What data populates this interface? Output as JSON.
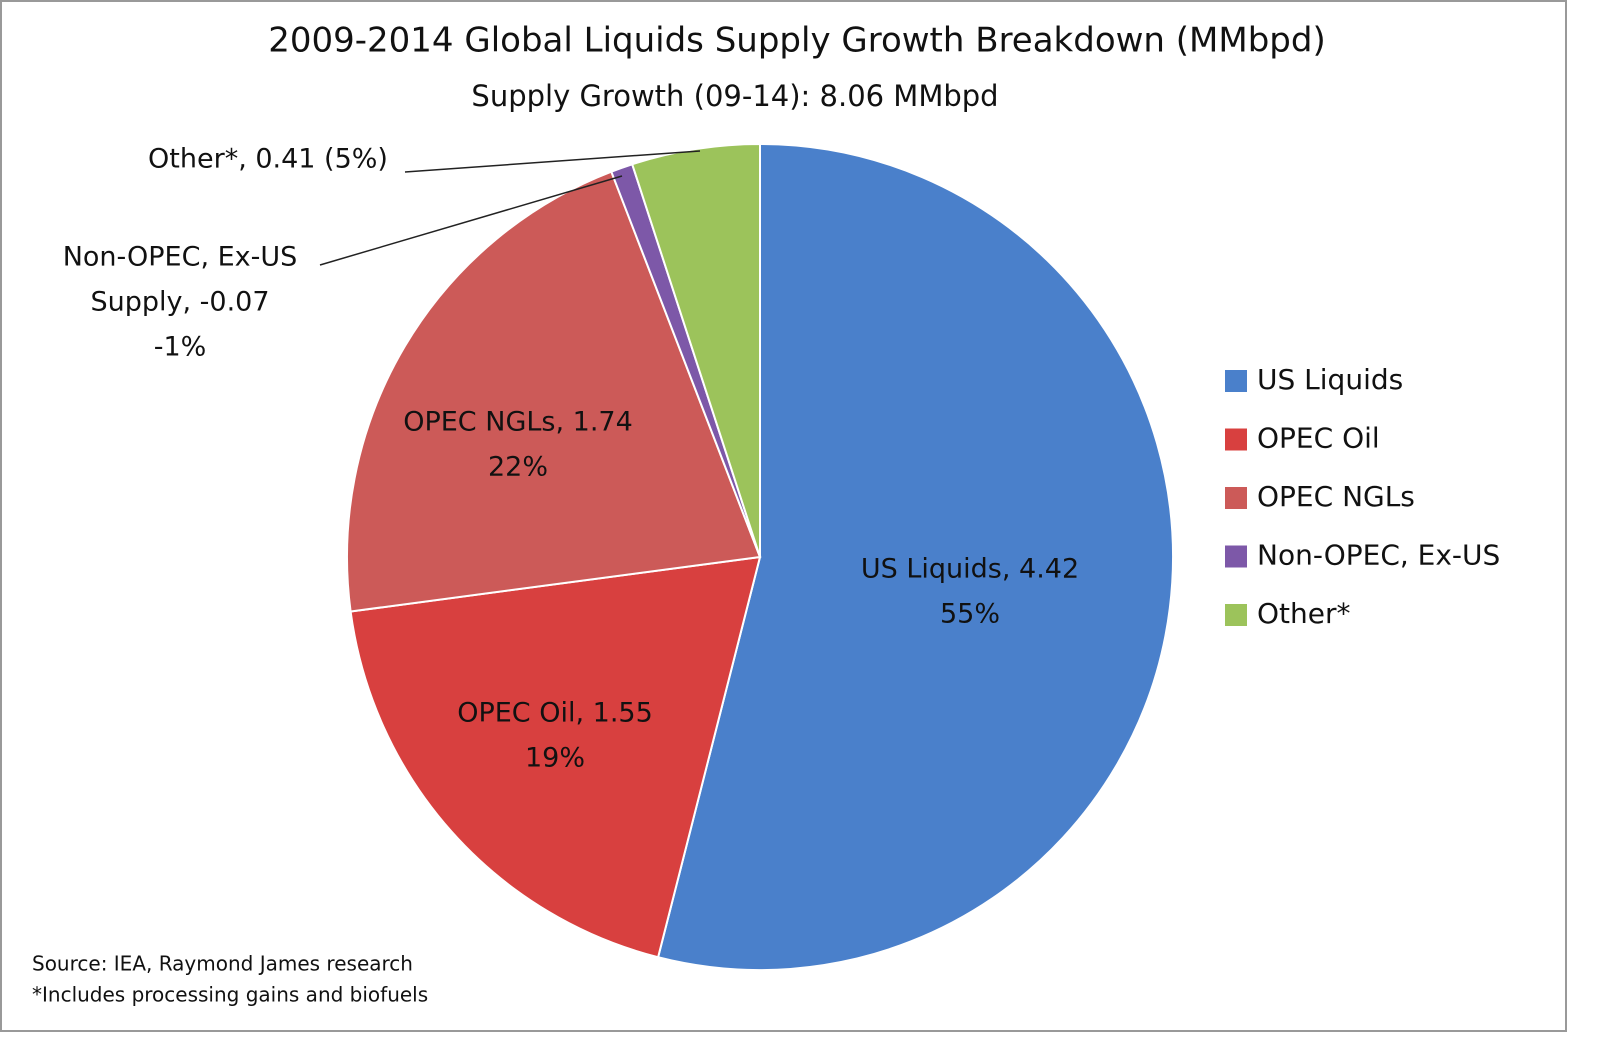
{
  "chart_data": {
    "type": "pie",
    "title": "2009-2014 Global Liquids Supply Growth Breakdown (MMbpd)",
    "subtitle": "Supply Growth (09-14): 8.06 MMbpd",
    "categories": [
      "US Liquids",
      "OPEC Oil",
      "OPEC NGLs",
      "Non-OPEC, Ex-US",
      "Other*"
    ],
    "values": [
      4.42,
      1.55,
      1.74,
      -0.07,
      0.41
    ],
    "value_labels": [
      [
        "US Liquids, 4.42",
        "55%"
      ],
      [
        "OPEC Oil, 1.55",
        "19%"
      ],
      [
        "OPEC NGLs, 1.74",
        "22%"
      ],
      [
        "Non-OPEC, Ex-US",
        "Supply, -0.07",
        "-1%"
      ],
      [
        "Other*, 0.41 (5%)"
      ]
    ],
    "colors": [
      "#4a80cb",
      "#d8403f",
      "#cc5a58",
      "#7d58a8",
      "#9cc35b"
    ],
    "legend": "right",
    "notes": [
      "Source: IEA, Raymond James research",
      "*Includes processing gains and biofuels"
    ]
  }
}
